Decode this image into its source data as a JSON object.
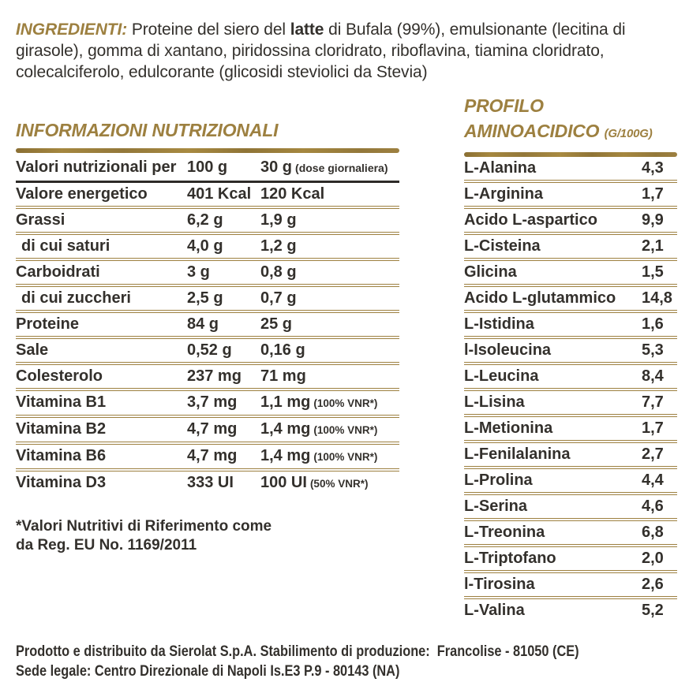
{
  "colors": {
    "gold": "#9d8040",
    "dark": "#33302c",
    "header_rule": "#2d2b28",
    "background": "#ffffff"
  },
  "ingredients": {
    "label": "INGREDIENTI:",
    "part1": " Proteine del siero del ",
    "bold_word": "latte",
    "part2": " di Bufala (99%), emulsionante (lecitina di girasole), gomma di xantano, piridossina cloridrato, riboflavina, tiamina cloridrato, colecalciferolo, edulcorante (glicosidi steviolici da Stevia)"
  },
  "nutrition": {
    "title": "INFORMAZIONI NUTRIZIONALI",
    "header": {
      "label": "Valori nutrizionali per",
      "col_100g": "100 g",
      "col_30g": "30 g",
      "col_30g_note": "(dose giornaliera)"
    },
    "rows": [
      {
        "label": "Valore energetico",
        "v100": "401 Kcal",
        "v30": "120 Kcal",
        "note": "",
        "sub": false
      },
      {
        "label": "Grassi",
        "v100": "6,2 g",
        "v30": "1,9 g",
        "note": "",
        "sub": false
      },
      {
        "label": "di cui saturi",
        "v100": "4,0 g",
        "v30": "1,2 g",
        "note": "",
        "sub": true
      },
      {
        "label": "Carboidrati",
        "v100": "3 g",
        "v30": "0,8 g",
        "note": "",
        "sub": false
      },
      {
        "label": "di cui zuccheri",
        "v100": "2,5 g",
        "v30": "0,7 g",
        "note": "",
        "sub": true
      },
      {
        "label": "Proteine",
        "v100": "84 g",
        "v30": "25 g",
        "note": "",
        "sub": false
      },
      {
        "label": "Sale",
        "v100": "0,52 g",
        "v30": "0,16 g",
        "note": "",
        "sub": false
      },
      {
        "label": "Colesterolo",
        "v100": "237 mg",
        "v30": "71 mg",
        "note": "",
        "sub": false
      },
      {
        "label": "Vitamina B1",
        "v100": "3,7 mg",
        "v30": "1,1 mg",
        "note": "(100% VNR*)",
        "sub": false
      },
      {
        "label": "Vitamina B2",
        "v100": "4,7 mg",
        "v30": "1,4 mg",
        "note": "(100% VNR*)",
        "sub": false
      },
      {
        "label": "Vitamina B6",
        "v100": "4,7 mg",
        "v30": "1,4 mg",
        "note": "(100% VNR*)",
        "sub": false
      },
      {
        "label": "Vitamina D3",
        "v100": "333 UI",
        "v30": "100 UI",
        "note": "(50% VNR*)",
        "sub": false
      }
    ],
    "footnote_line1": "*Valori Nutritivi di Riferimento come",
    "footnote_line2": "da Reg. EU No. 1169/2011"
  },
  "amino": {
    "title_line1": "PROFILO",
    "title_line2": "AMINOACIDICO",
    "title_unit": "(G/100G)",
    "rows": [
      {
        "name": "L-Alanina",
        "value": "4,3"
      },
      {
        "name": "L-Arginina",
        "value": "1,7"
      },
      {
        "name": "Acido L-aspartico",
        "value": "9,9"
      },
      {
        "name": "L-Cisteina",
        "value": "2,1"
      },
      {
        "name": "Glicina",
        "value": "1,5"
      },
      {
        "name": "Acido L-glutammico",
        "value": "14,8"
      },
      {
        "name": "L-Istidina",
        "value": "1,6"
      },
      {
        "name": "l-Isoleucina",
        "value": "5,3"
      },
      {
        "name": "L-Leucina",
        "value": "8,4"
      },
      {
        "name": "L-Lisina",
        "value": "7,7"
      },
      {
        "name": "L-Metionina",
        "value": "1,7"
      },
      {
        "name": "L-Fenilalanina",
        "value": "2,7"
      },
      {
        "name": "L-Prolina",
        "value": "4,4"
      },
      {
        "name": "L-Serina",
        "value": "4,6"
      },
      {
        "name": "L-Treonina",
        "value": "6,8"
      },
      {
        "name": "L-Triptofano",
        "value": "2,0"
      },
      {
        "name": "l-Tirosina",
        "value": "2,6"
      },
      {
        "name": "L-Valina",
        "value": "5,2"
      }
    ]
  },
  "footer": {
    "line1": "Prodotto e distribuito da Sierolat S.p.A. Stabilimento di produzione:  Francolise - 81050 (CE)",
    "line2": "Sede legale: Centro Direzionale di Napoli Is.E3 P.9 - 80143 (NA)"
  }
}
